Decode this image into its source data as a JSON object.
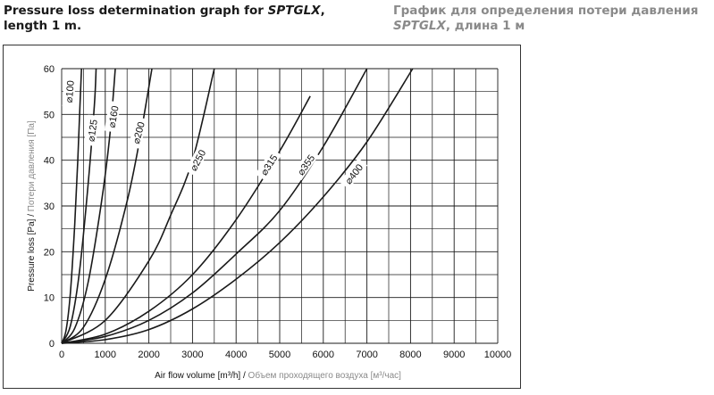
{
  "header": {
    "title_en_prefix": "Pressure loss determination graph for ",
    "title_en_model": "SPTGLX",
    "title_en_suffix": ",",
    "title_en_line2": "length 1 m.",
    "title_ru_line1": "График для определения потери давления",
    "title_ru_model": "SPTGLX",
    "title_ru_suffix": ", длина 1 м"
  },
  "chart_data": {
    "type": "line",
    "xlabel_en": "Air flow volume [m³/h]",
    "xlabel_sep": " / ",
    "xlabel_ru": "Объем проходящего воздуха [м³/час]",
    "ylabel_en": "Pressure loss [Pa]",
    "ylabel_sep": " / ",
    "ylabel_ru": "Потери давления [Па]",
    "xlim": [
      0,
      10000
    ],
    "ylim": [
      0,
      60
    ],
    "x_ticks": [
      0,
      1000,
      2000,
      3000,
      4000,
      5000,
      6000,
      7000,
      8000,
      9000,
      10000
    ],
    "y_ticks": [
      0,
      10,
      20,
      30,
      40,
      50,
      60
    ],
    "grid": true,
    "series": [
      {
        "name": "⌀100",
        "values": [
          [
            0,
            0
          ],
          [
            100,
            2.8
          ],
          [
            200,
            11
          ],
          [
            300,
            26
          ],
          [
            370,
            40
          ],
          [
            420,
            52
          ],
          [
            455,
            60
          ]
        ]
      },
      {
        "name": "⌀125",
        "values": [
          [
            0,
            0
          ],
          [
            200,
            3.8
          ],
          [
            400,
            15
          ],
          [
            600,
            34
          ],
          [
            750,
            52
          ],
          [
            790,
            60
          ]
        ]
      },
      {
        "name": "⌀160",
        "values": [
          [
            0,
            0
          ],
          [
            300,
            3.3
          ],
          [
            600,
            13
          ],
          [
            900,
            30
          ],
          [
            1100,
            45
          ],
          [
            1230,
            60
          ]
        ]
      },
      {
        "name": "⌀200",
        "values": [
          [
            0,
            0
          ],
          [
            500,
            3.5
          ],
          [
            1000,
            14
          ],
          [
            1500,
            31
          ],
          [
            1800,
            45
          ],
          [
            2070,
            60
          ]
        ]
      },
      {
        "name": "⌀250",
        "values": [
          [
            0,
            0
          ],
          [
            1000,
            5
          ],
          [
            2000,
            18
          ],
          [
            2500,
            28
          ],
          [
            3000,
            40
          ],
          [
            3500,
            60
          ]
        ]
      },
      {
        "name": "⌀315",
        "values": [
          [
            0,
            0
          ],
          [
            1000,
            2
          ],
          [
            2000,
            7
          ],
          [
            3000,
            15
          ],
          [
            4000,
            27
          ],
          [
            5000,
            42
          ],
          [
            5700,
            54
          ]
        ]
      },
      {
        "name": "⌀355",
        "values": [
          [
            0,
            0
          ],
          [
            1000,
            1.5
          ],
          [
            2000,
            5
          ],
          [
            3000,
            11
          ],
          [
            4000,
            19.5
          ],
          [
            5000,
            29
          ],
          [
            6000,
            43
          ],
          [
            7000,
            60
          ]
        ]
      },
      {
        "name": "⌀400",
        "values": [
          [
            0,
            0
          ],
          [
            1000,
            0.8
          ],
          [
            2000,
            3
          ],
          [
            3000,
            7.5
          ],
          [
            4000,
            14
          ],
          [
            5000,
            22
          ],
          [
            6000,
            32
          ],
          [
            7000,
            44
          ],
          [
            8050,
            60
          ]
        ]
      }
    ],
    "label_positions_note": ""
  },
  "curve_labels": [
    "⌀100",
    "⌀125",
    "⌀160",
    "⌀200",
    "⌀250",
    "⌀315",
    "⌀355",
    "⌀400"
  ],
  "colors": {
    "curve": "#1a1a1a",
    "grid": "#1a1a1a",
    "title_ru": "#8a8a8a"
  }
}
